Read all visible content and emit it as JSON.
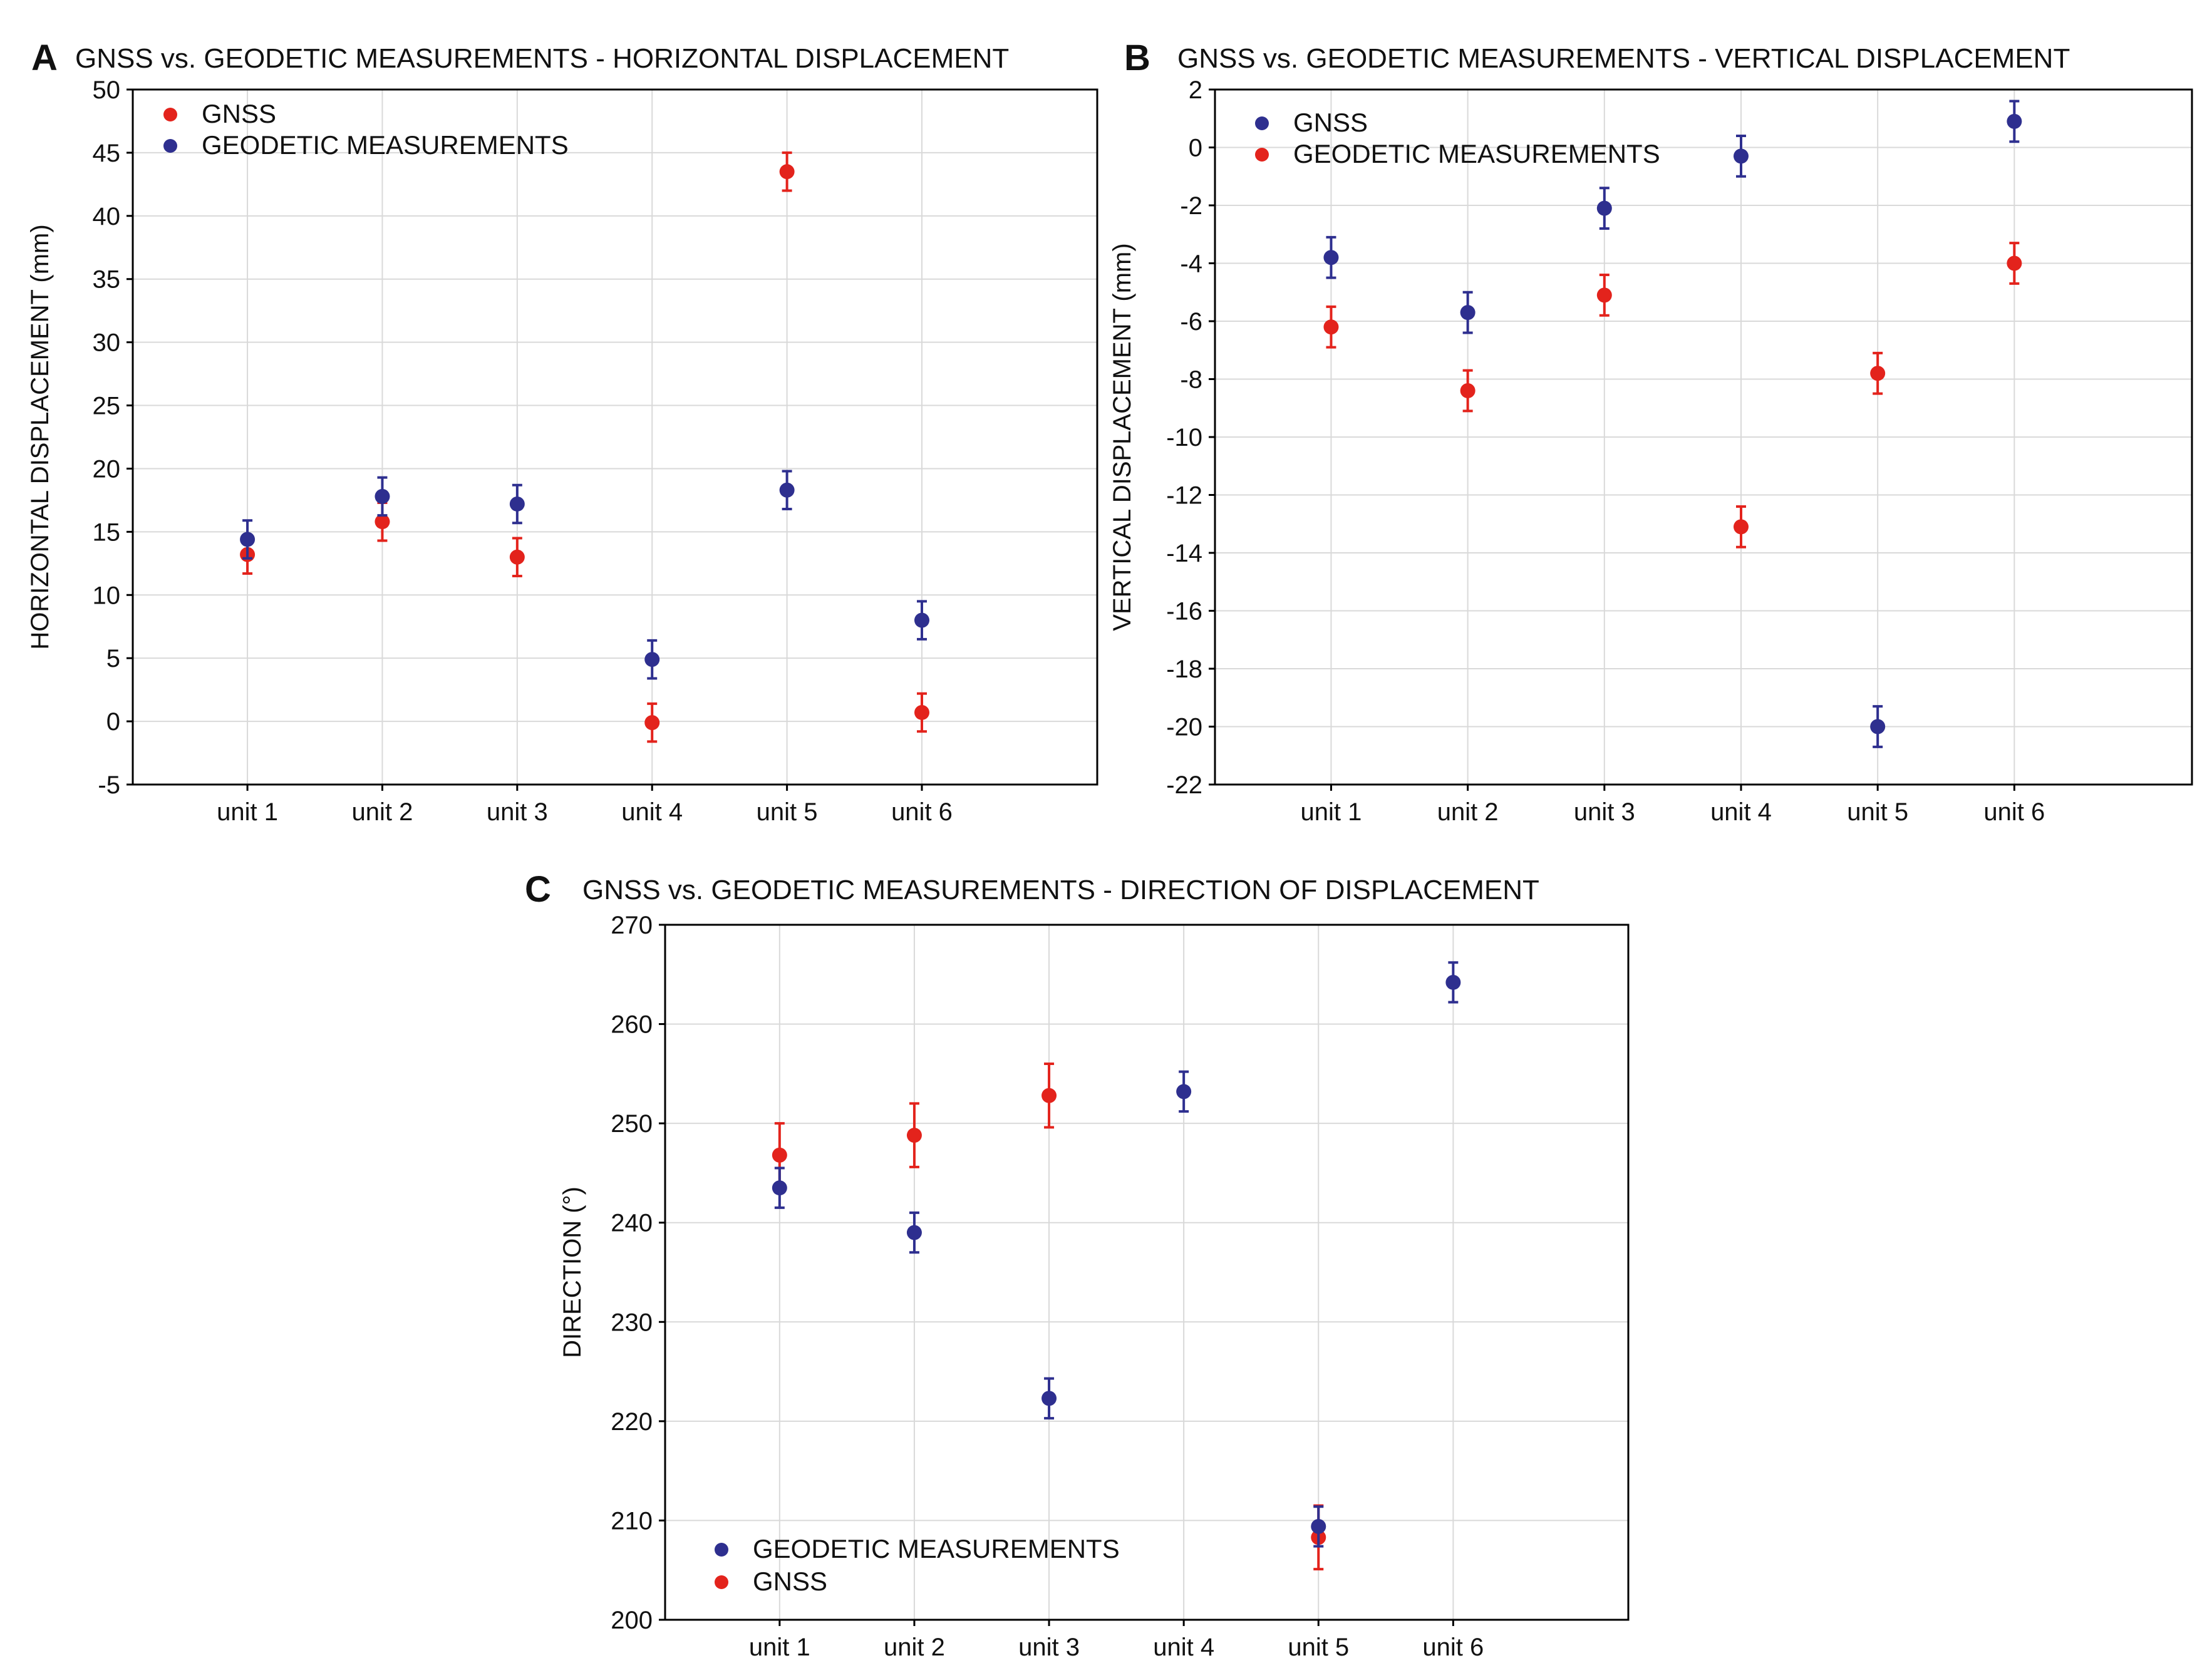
{
  "colors": {
    "gnss": "#e3231c",
    "geodetic": "#2e2f8f",
    "grid": "#d9d9d9",
    "frame": "#000000"
  },
  "chart_data": [
    {
      "panel_letter": "A",
      "type": "scatter",
      "title": "GNSS vs. GEODETIC MEASUREMENTS - HORIZONTAL DISPLACEMENT",
      "xlabel": "",
      "ylabel": "HORIZONTAL DISPLACEMENT (mm)",
      "categories": [
        "unit 1",
        "unit 2",
        "unit 3",
        "unit 4",
        "unit 5",
        "unit 6"
      ],
      "ylim": [
        -5,
        50
      ],
      "yticks": [
        -5,
        0,
        5,
        10,
        15,
        20,
        25,
        30,
        35,
        40,
        45,
        50
      ],
      "grid": true,
      "legend_position": "top-left",
      "legend_order": [
        "GNSS",
        "GEODETIC MEASUREMENTS"
      ],
      "series": [
        {
          "name": "GNSS",
          "color_key": "gnss",
          "values": [
            13.2,
            15.8,
            13.0,
            -0.1,
            43.5,
            0.7
          ],
          "error": [
            1.5,
            1.5,
            1.5,
            1.5,
            1.5,
            1.5
          ]
        },
        {
          "name": "GEODETIC MEASUREMENTS",
          "color_key": "geodetic",
          "values": [
            14.4,
            17.8,
            17.2,
            4.9,
            18.3,
            8.0
          ],
          "error": [
            1.5,
            1.5,
            1.5,
            1.5,
            1.5,
            1.5
          ]
        }
      ]
    },
    {
      "panel_letter": "B",
      "type": "scatter",
      "title": "GNSS vs. GEODETIC MEASUREMENTS - VERTICAL DISPLACEMENT",
      "xlabel": "",
      "ylabel": "VERTICAL DISPLACEMENT (mm)",
      "categories": [
        "unit 1",
        "unit 2",
        "unit 3",
        "unit 4",
        "unit 5",
        "unit 6"
      ],
      "ylim": [
        -22,
        2
      ],
      "yticks": [
        -22,
        -20,
        -18,
        -16,
        -14,
        -12,
        -10,
        -8,
        -6,
        -4,
        -2,
        0,
        2
      ],
      "grid": true,
      "legend_position": "top-left",
      "legend_order": [
        "GNSS",
        "GEODETIC MEASUREMENTS"
      ],
      "series": [
        {
          "name": "GNSS",
          "color_key": "geodetic",
          "values": [
            -3.8,
            -5.7,
            -2.1,
            -0.3,
            -20.0,
            0.9
          ],
          "error": [
            0.7,
            0.7,
            0.7,
            0.7,
            0.7,
            0.7
          ]
        },
        {
          "name": "GEODETIC MEASUREMENTS",
          "color_key": "gnss",
          "values": [
            -6.2,
            -8.4,
            -5.1,
            -13.1,
            -7.8,
            -4.0
          ],
          "error": [
            0.7,
            0.7,
            0.7,
            0.7,
            0.7,
            0.7
          ]
        }
      ]
    },
    {
      "panel_letter": "C",
      "type": "scatter",
      "title": "GNSS vs. GEODETIC MEASUREMENTS - DIRECTION OF DISPLACEMENT",
      "xlabel": "",
      "ylabel": "DIRECTION (°)",
      "categories": [
        "unit 1",
        "unit 2",
        "unit 3",
        "unit 4",
        "unit 5",
        "unit 6"
      ],
      "ylim": [
        200,
        270
      ],
      "yticks": [
        200,
        210,
        220,
        230,
        240,
        250,
        260,
        270
      ],
      "grid": true,
      "legend_position": "bottom-left",
      "legend_order": [
        "GEODETIC MEASUREMENTS",
        "GNSS"
      ],
      "series": [
        {
          "name": "GNSS",
          "color_key": "gnss",
          "values": [
            246.8,
            248.8,
            252.8,
            null,
            208.3,
            null
          ],
          "error": [
            3.2,
            3.2,
            3.2,
            null,
            3.2,
            null
          ]
        },
        {
          "name": "GEODETIC MEASUREMENTS",
          "color_key": "geodetic",
          "values": [
            243.5,
            239.0,
            222.3,
            253.2,
            209.4,
            264.2
          ],
          "error": [
            2.0,
            2.0,
            2.0,
            2.0,
            2.0,
            2.0
          ]
        }
      ]
    }
  ]
}
